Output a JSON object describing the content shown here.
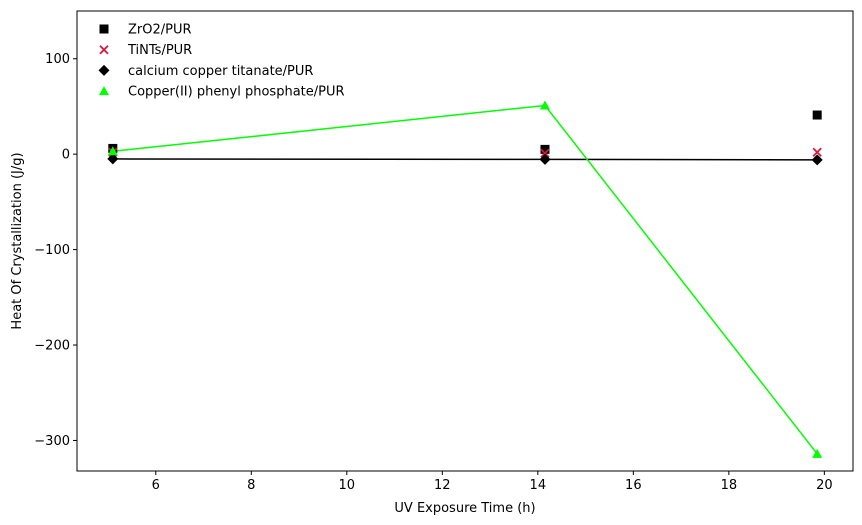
{
  "chart_data": {
    "type": "scatter",
    "xlabel": "UV Exposure Time (h)",
    "ylabel": "Heat Of Crystallization (J/g)",
    "xlim": [
      4.35,
      20.6
    ],
    "ylim": [
      -332,
      150
    ],
    "xticks": [
      6,
      8,
      10,
      12,
      14,
      16,
      18,
      20
    ],
    "yticks": [
      100,
      0,
      -100,
      -200,
      -300
    ],
    "xtick_labels": [
      "6",
      "8",
      "10",
      "12",
      "14",
      "16",
      "18",
      "20"
    ],
    "ytick_labels": [
      "100",
      "0",
      "−100",
      "−200",
      "−300"
    ],
    "legend_position": "top-left",
    "grid": false,
    "series": [
      {
        "name": "ZrO2/PUR",
        "marker": "square",
        "color": "#000000",
        "line": false,
        "x": [
          5.1,
          14.15,
          19.85
        ],
        "y": [
          6,
          5,
          41
        ]
      },
      {
        "name": "TiNTs/PUR",
        "marker": "x",
        "color": "#d6173a",
        "line": false,
        "x": [
          5.1,
          14.15,
          19.85
        ],
        "y": [
          2,
          1,
          2
        ]
      },
      {
        "name": "calcium copper titanate/PUR",
        "marker": "diamond",
        "color": "#000000",
        "line": true,
        "x": [
          5.1,
          14.15,
          19.85
        ],
        "y": [
          -5,
          -5.5,
          -6
        ]
      },
      {
        "name": "Copper(II) phenyl phosphate/PUR",
        "marker": "triangle",
        "color": "#00ff00",
        "line": true,
        "x": [
          5.1,
          14.15,
          19.85
        ],
        "y": [
          3,
          51,
          -314
        ]
      }
    ]
  }
}
